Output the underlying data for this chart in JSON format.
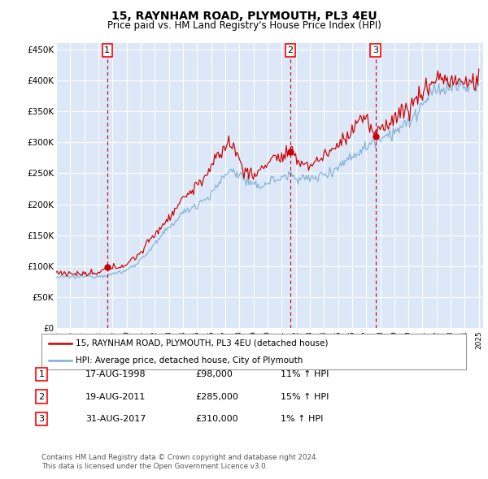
{
  "title": "15, RAYNHAM ROAD, PLYMOUTH, PL3 4EU",
  "subtitle": "Price paid vs. HM Land Registry's House Price Index (HPI)",
  "ylim": [
    0,
    460000
  ],
  "yticks": [
    0,
    50000,
    100000,
    150000,
    200000,
    250000,
    300000,
    350000,
    400000,
    450000
  ],
  "ytick_labels": [
    "£0",
    "£50K",
    "£100K",
    "£150K",
    "£200K",
    "£250K",
    "£300K",
    "£350K",
    "£400K",
    "£450K"
  ],
  "background_color": "#dce8f7",
  "grid_color": "#ffffff",
  "line_color_red": "#cc0000",
  "line_color_blue": "#7dadd4",
  "vline_color": "#cc0000",
  "sale_labels": [
    "1",
    "2",
    "3"
  ],
  "sale_date_strs": [
    "17-AUG-1998",
    "19-AUG-2011",
    "31-AUG-2017"
  ],
  "sale_price_strs": [
    "£98,000",
    "£285,000",
    "£310,000"
  ],
  "sale_hpi_strs": [
    "11% ↑ HPI",
    "15% ↑ HPI",
    "1% ↑ HPI"
  ],
  "sale_prices": [
    98000,
    285000,
    310000
  ],
  "sale_years": [
    1998.625,
    2011.625,
    2017.667
  ],
  "legend_red_label": "15, RAYNHAM ROAD, PLYMOUTH, PL3 4EU (detached house)",
  "legend_blue_label": "HPI: Average price, detached house, City of Plymouth",
  "footnote1": "Contains HM Land Registry data © Crown copyright and database right 2024.",
  "footnote2": "This data is licensed under the Open Government Licence v3.0."
}
